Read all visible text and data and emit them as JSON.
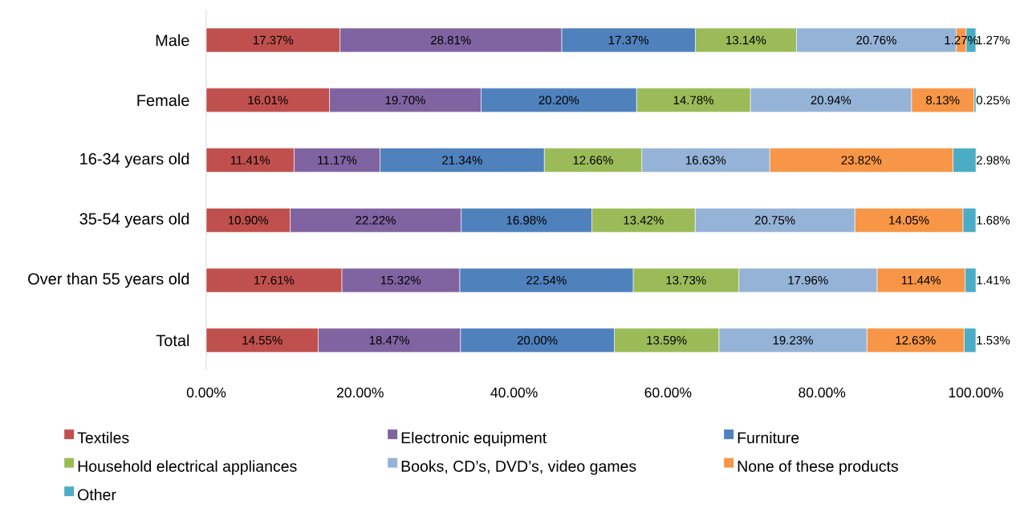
{
  "chart_data": {
    "type": "bar",
    "orientation": "horizontal",
    "stacked": true,
    "legend": "bottom",
    "categories": [
      "Male",
      "Female",
      "16-34 years old",
      "35-54 years old",
      "Over than 55 years old",
      "Total"
    ],
    "series": [
      {
        "name": "Textiles",
        "color": "#c0504d",
        "values": [
          17.37,
          16.01,
          11.41,
          10.9,
          17.61,
          14.55
        ],
        "value_labels": [
          "17.37%",
          "16.01%",
          "11.41%",
          "10.90%",
          "17.61%",
          "14.55%"
        ]
      },
      {
        "name": "Electronic equipment",
        "color": "#8064a2",
        "values": [
          28.81,
          19.7,
          11.17,
          22.22,
          15.32,
          18.47
        ],
        "value_labels": [
          "28.81%",
          "19.70%",
          "11.17%",
          "22.22%",
          "15.32%",
          "18.47%"
        ]
      },
      {
        "name": "Furniture",
        "color": "#4f81bd",
        "values": [
          17.37,
          20.2,
          21.34,
          16.98,
          22.54,
          20.0
        ],
        "value_labels": [
          "17.37%",
          "20.20%",
          "21.34%",
          "16.98%",
          "22.54%",
          "20.00%"
        ]
      },
      {
        "name": "Household electrical appliances",
        "color": "#9bbb59",
        "values": [
          13.14,
          14.78,
          12.66,
          13.42,
          13.73,
          13.59
        ],
        "value_labels": [
          "13.14%",
          "14.78%",
          "12.66%",
          "13.42%",
          "13.73%",
          "13.59%"
        ]
      },
      {
        "name": "Books, CD’s, DVD’s, video games",
        "color": "#95b3d7",
        "values": [
          20.76,
          20.94,
          16.63,
          20.75,
          17.96,
          19.23
        ],
        "value_labels": [
          "20.76%",
          "20.94%",
          "16.63%",
          "20.75%",
          "17.96%",
          "19.23%"
        ]
      },
      {
        "name": "None of these products",
        "color": "#f79646",
        "values": [
          1.27,
          8.13,
          23.82,
          14.05,
          11.44,
          12.63
        ],
        "value_labels": [
          "1.27%",
          "8.13%",
          "23.82%",
          "14.05%",
          "11.44%",
          "12.63%"
        ]
      },
      {
        "name": "Other",
        "color": "#4bacc6",
        "values": [
          1.27,
          0.25,
          2.98,
          1.68,
          1.41,
          1.53
        ],
        "value_labels": [
          "1.27%",
          "0.25%",
          "2.98%",
          "1.68%",
          "1.41%",
          "1.53%"
        ]
      }
    ],
    "xlim": [
      0,
      100
    ],
    "xticks": [
      {
        "value": 0,
        "label": "0.00%"
      },
      {
        "value": 20,
        "label": "20.00%"
      },
      {
        "value": 40,
        "label": "40.00%"
      },
      {
        "value": 60,
        "label": "60.00%"
      },
      {
        "value": 80,
        "label": "80.00%"
      },
      {
        "value": 100,
        "label": "100.00%"
      }
    ]
  }
}
